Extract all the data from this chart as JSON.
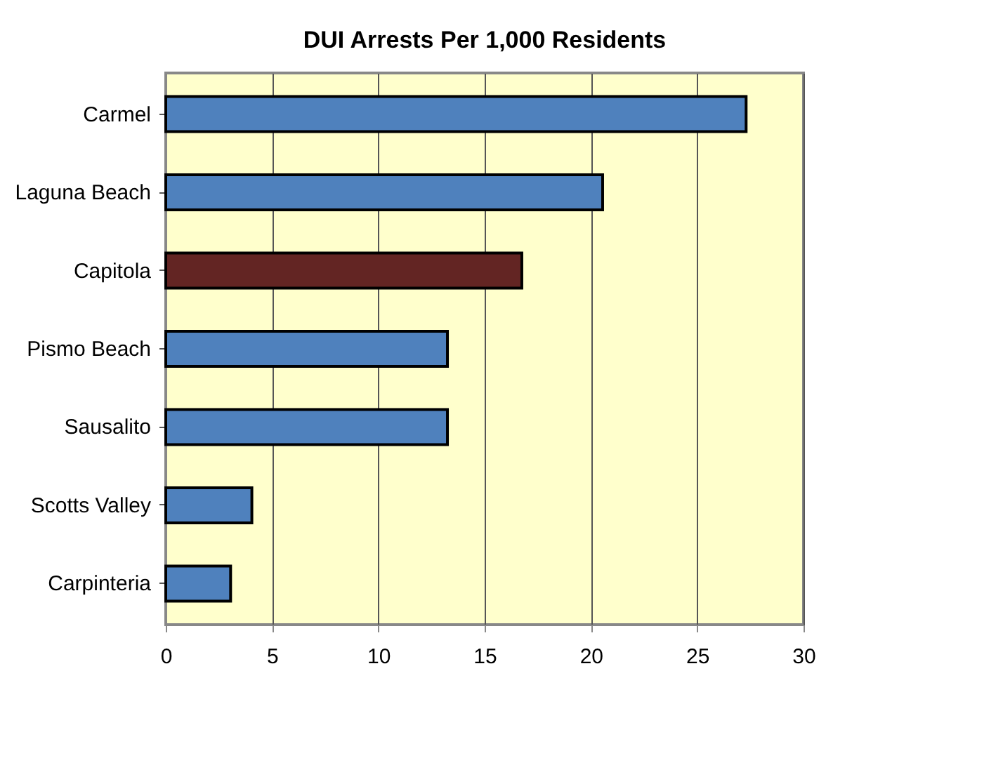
{
  "chart_data": {
    "type": "bar",
    "orientation": "horizontal",
    "title": "DUI  Arrests Per 1,000 Residents",
    "categories": [
      "Carmel",
      "Laguna Beach",
      "Capitola",
      "Pismo Beach",
      "Sausalito",
      "Scotts Valley",
      "Carpinteria"
    ],
    "values": [
      27.3,
      20.55,
      16.75,
      13.25,
      13.25,
      4.05,
      3.05
    ],
    "colors": [
      "#4f81bd",
      "#4f81bd",
      "#632523",
      "#4f81bd",
      "#4f81bd",
      "#4f81bd",
      "#4f81bd"
    ],
    "xlim": [
      0,
      30
    ],
    "xticks": [
      0,
      5,
      10,
      15,
      20,
      25,
      30
    ],
    "grid": "x"
  }
}
